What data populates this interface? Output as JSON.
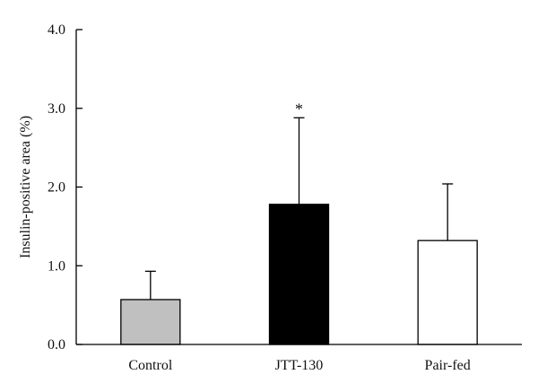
{
  "chart_data": {
    "type": "bar",
    "categories": [
      "Control",
      "JTT-130",
      "Pair-fed"
    ],
    "values": [
      0.57,
      1.78,
      1.32
    ],
    "errors": [
      0.36,
      1.1,
      0.72
    ],
    "colors": [
      "#c0c0c0",
      "#000000",
      "#ffffff"
    ],
    "annotations": [
      "",
      "*",
      ""
    ],
    "ylabel": "Insulin-positive area (%)",
    "xlabel": "",
    "ylim": [
      0,
      4
    ],
    "yticks": [
      0,
      1,
      2,
      3,
      4
    ],
    "ytick_labels": [
      "0.0",
      "1.0",
      "2.0",
      "3.0",
      "4.0"
    ],
    "grid": false,
    "error_bars": "upper"
  }
}
